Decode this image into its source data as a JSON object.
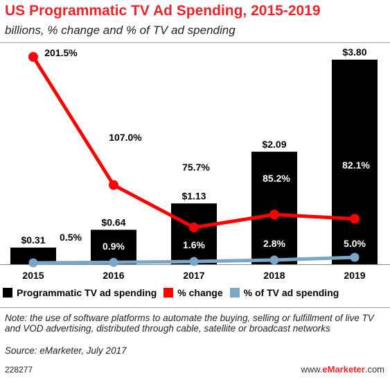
{
  "title": "US Programmatic TV Ad Spending, 2015-2019",
  "subtitle": "billions, % change and % of TV ad spending",
  "colors": {
    "bar": "#000000",
    "change": "#ff0000",
    "share": "#7aa7c7",
    "title": "#e8262a"
  },
  "chart_data": {
    "type": "bar",
    "categories": [
      "2015",
      "2016",
      "2017",
      "2018",
      "2019"
    ],
    "series": [
      {
        "name": "Programmatic TV ad spending",
        "type": "bar",
        "values": [
          0.31,
          0.64,
          1.13,
          2.09,
          3.8
        ],
        "labels": [
          "$0.31",
          "$0.64",
          "$1.13",
          "$2.09",
          "$3.80"
        ]
      },
      {
        "name": "% change",
        "type": "line",
        "values": [
          201.5,
          107.0,
          75.7,
          85.2,
          82.1
        ],
        "labels": [
          "201.5%",
          "107.0%",
          "75.7%",
          "85.2%",
          "82.1%"
        ]
      },
      {
        "name": "% of TV ad spending",
        "type": "line",
        "values": [
          0.5,
          0.9,
          1.6,
          2.8,
          5.0
        ],
        "labels": [
          "0.5%",
          "0.9%",
          "1.6%",
          "2.8%",
          "5.0%"
        ]
      }
    ],
    "title": "US Programmatic TV Ad Spending, 2015-2019",
    "subtitle": "billions, % change and % of TV ad spending",
    "xlabel": "",
    "ylabel": "",
    "legend": "bottom"
  },
  "legend": [
    {
      "label": "Programmatic TV ad spending"
    },
    {
      "label": "% change"
    },
    {
      "label": "% of TV ad spending"
    }
  ],
  "note": "Note: the use of software platforms to automate the buying, selling or fulfillment of live TV and VOD advertising, distributed through cable, satellite or broadcast networks",
  "source": "Source: eMarketer, July 2017",
  "chart_id": "228277",
  "brand": {
    "prefix": "www.",
    "name": "eMarketer",
    "suffix": ".com"
  }
}
